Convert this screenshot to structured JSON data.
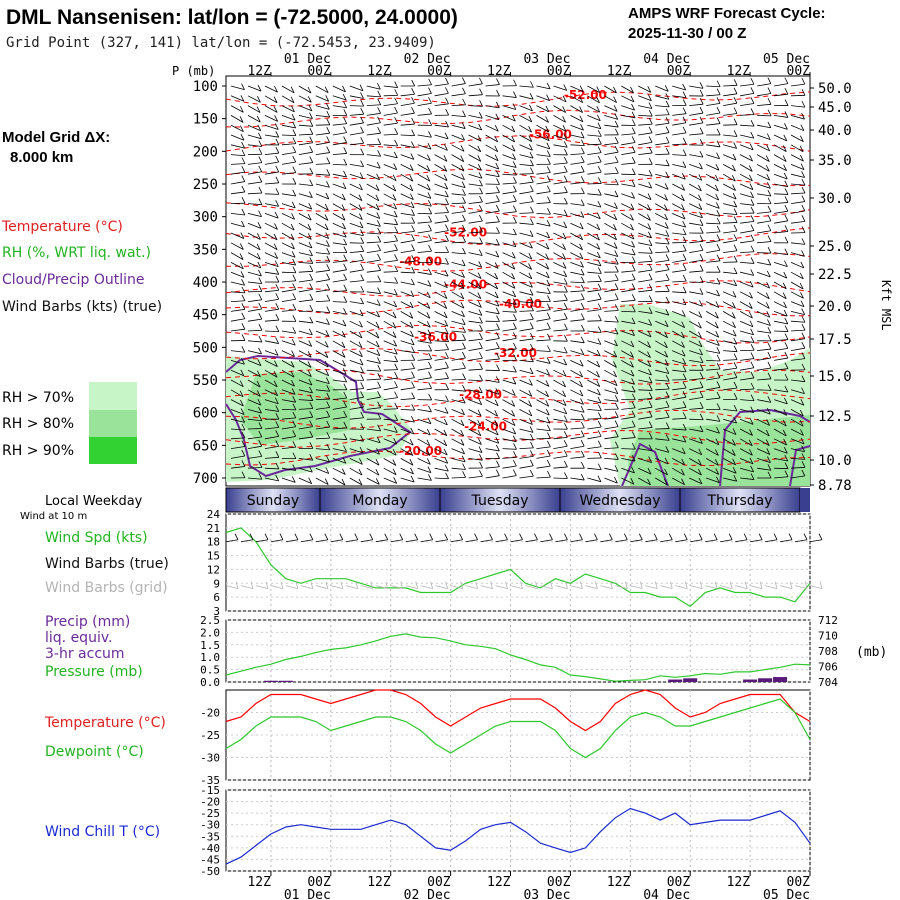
{
  "header": {
    "title": "DML Nansenisen:  lat/lon = (-72.5000, 24.0000)",
    "grid_point": "Grid Point (327, 141) lat/lon = (-72.5453, 23.9409)",
    "cycle_label": "AMPS WRF Forecast Cycle:",
    "cycle_value": "2025-11-30 / 00  Z",
    "model_grid_label": "Model Grid ΔX:",
    "model_grid_value": "8.000 km"
  },
  "legend": {
    "temperature": "Temperature (°C)",
    "rh": "RH (%, WRT liq. wat.)",
    "cloud": "Cloud/Precip Outline",
    "wind_barbs": "Wind Barbs (kts) (true)",
    "rh70": "RH > 70%",
    "rh80": "RH > 80%",
    "rh90": "RH > 90%",
    "local_weekday": "Local Weekday",
    "wind_at_10m": "Wind at 10 m",
    "wind_spd": "Wind Spd (kts)",
    "wind_barbs_true": "Wind Barbs (true)",
    "wind_barbs_grid": "Wind Barbs (grid)",
    "precip": "Precip (mm)",
    "liq_equiv": "liq. equiv.",
    "accum": "3-hr accum",
    "pressure": "Pressure (mb)",
    "temp2": "Temperature (°C)",
    "dewpoint": "Dewpoint (°C)",
    "wind_chill": "Wind Chill T (°C)",
    "mb_unit": "(mb)",
    "p_unit": "P (mb)",
    "kft_unit": "Kft MSL"
  },
  "colors": {
    "temp": "#ff0000",
    "rh70": "#c8f5c8",
    "rh80": "#9ae39a",
    "rh90": "#32d232",
    "cloud": "#6a2a9a",
    "green": "#2ec82e",
    "blue": "#1a2ad0",
    "grid_barb": "#b4b4b4",
    "purple_bar": "#5a1a7a"
  },
  "chart_data": [
    {
      "type": "contour",
      "title": "Time-height cross section",
      "ylabel": "P (mb)",
      "y2label": "Kft MSL",
      "ylim": [
        700,
        100
      ],
      "pressure_ticks": [
        100,
        150,
        200,
        250,
        300,
        350,
        400,
        450,
        500,
        550,
        600,
        650,
        700
      ],
      "height_ticks": [
        "50.0",
        "45.0",
        "40.0",
        "35.0",
        "30.0",
        "25.0",
        "22.5",
        "20.0",
        "17.5",
        "15.0",
        "12.5",
        "10.0",
        "8.78"
      ],
      "time_hours_range": [
        3,
        120
      ],
      "top_time_labels": [
        {
          "t": 12,
          "hour": "12Z",
          "date": ""
        },
        {
          "t": 24,
          "hour": "00Z",
          "date": "01 Dec"
        },
        {
          "t": 36,
          "hour": "12Z",
          "date": ""
        },
        {
          "t": 48,
          "hour": "00Z",
          "date": "02 Dec"
        },
        {
          "t": 60,
          "hour": "12Z",
          "date": ""
        },
        {
          "t": 72,
          "hour": "00Z",
          "date": "03 Dec"
        },
        {
          "t": 84,
          "hour": "12Z",
          "date": ""
        },
        {
          "t": 96,
          "hour": "00Z",
          "date": "04 Dec"
        },
        {
          "t": 108,
          "hour": "12Z",
          "date": ""
        },
        {
          "t": 120,
          "hour": "00Z",
          "date": "05 Dec"
        }
      ],
      "temperature_contour_labels": [
        {
          "t": 75,
          "p": 120,
          "label": "-52.00"
        },
        {
          "t": 68,
          "p": 180,
          "label": "-56.00"
        },
        {
          "t": 51,
          "p": 330,
          "label": "-52.00"
        },
        {
          "t": 42,
          "p": 375,
          "label": "-48.00"
        },
        {
          "t": 51,
          "p": 410,
          "label": "-44.00"
        },
        {
          "t": 62,
          "p": 440,
          "label": "-40.00"
        },
        {
          "t": 45,
          "p": 490,
          "label": "-36.00"
        },
        {
          "t": 61,
          "p": 515,
          "label": "-32.00"
        },
        {
          "t": 54,
          "p": 578,
          "label": "-28.00"
        },
        {
          "t": 55,
          "p": 627,
          "label": "-24.00"
        },
        {
          "t": 42,
          "p": 665,
          "label": "-20.00"
        }
      ],
      "rh_levels": [
        "> 70%",
        "> 80%",
        "> 90%"
      ]
    },
    {
      "type": "line",
      "title": "Wind Spd (kts)",
      "x": [
        3,
        6,
        9,
        12,
        15,
        18,
        21,
        24,
        27,
        30,
        33,
        36,
        39,
        42,
        45,
        48,
        51,
        54,
        57,
        60,
        63,
        66,
        69,
        72,
        75,
        78,
        81,
        84,
        87,
        90,
        93,
        96,
        99,
        102,
        105,
        108,
        111,
        114,
        117,
        120
      ],
      "values": [
        20,
        21,
        18,
        13,
        10,
        9,
        10,
        10,
        10,
        9,
        8,
        8,
        8,
        7,
        7,
        7,
        9,
        10,
        11,
        12,
        9,
        8,
        10,
        9,
        11,
        10,
        9,
        7,
        7,
        6,
        6,
        4,
        7,
        8,
        7,
        7,
        6,
        6,
        5,
        9
      ],
      "ylim": [
        3,
        24
      ],
      "yticks": [
        3,
        6,
        9,
        12,
        15,
        18,
        21,
        24
      ]
    },
    {
      "type": "bar+line",
      "title": "Precip (mm) / Pressure (mb)",
      "x": [
        3,
        6,
        9,
        12,
        15,
        18,
        21,
        24,
        27,
        30,
        33,
        36,
        39,
        42,
        45,
        48,
        51,
        54,
        57,
        60,
        63,
        66,
        69,
        72,
        75,
        78,
        81,
        84,
        87,
        90,
        93,
        96,
        99,
        102,
        105,
        108,
        111,
        114,
        117,
        120
      ],
      "precip": [
        0,
        0,
        0,
        0.05,
        0.05,
        0,
        0,
        0,
        0,
        0,
        0,
        0,
        0,
        0,
        0,
        0,
        0,
        0,
        0,
        0,
        0,
        0,
        0,
        0,
        0,
        0,
        0,
        0,
        0,
        0,
        0.1,
        0.15,
        0,
        0,
        0,
        0.1,
        0.15,
        0.2,
        0,
        0
      ],
      "pressure": [
        704.9,
        705.4,
        705.9,
        706.3,
        706.9,
        707.3,
        707.8,
        708.2,
        708.4,
        708.8,
        709.3,
        709.9,
        710.2,
        709.8,
        709.7,
        709.3,
        708.8,
        708.6,
        708.3,
        707.5,
        706.9,
        706.2,
        705.9,
        704.9,
        704.7,
        704.4,
        704.1,
        704.2,
        704.3,
        704.8,
        704.6,
        704.8,
        705.1,
        705.0,
        705.3,
        705.3,
        705.6,
        705.9,
        706.3,
        706.2
      ],
      "ylim_left": [
        0,
        2.5
      ],
      "yticks_left": [
        "2.5",
        "2.0",
        "1.5",
        "1.0",
        "0.5",
        "0.0"
      ],
      "ylim_right": [
        704,
        712
      ],
      "yticks_right": [
        712,
        710,
        708,
        706,
        704
      ]
    },
    {
      "type": "line",
      "title": "Temperature / Dewpoint (°C)",
      "x": [
        3,
        6,
        9,
        12,
        15,
        18,
        21,
        24,
        27,
        30,
        33,
        36,
        39,
        42,
        45,
        48,
        51,
        54,
        57,
        60,
        63,
        66,
        69,
        72,
        75,
        78,
        81,
        84,
        87,
        90,
        93,
        96,
        99,
        102,
        105,
        108,
        111,
        114,
        117,
        120
      ],
      "series": [
        {
          "name": "Temperature",
          "values": [
            -22,
            -21,
            -18,
            -16,
            -16,
            -16,
            -17,
            -18,
            -17,
            -16,
            -15,
            -15,
            -16,
            -18,
            -21,
            -23,
            -21,
            -19,
            -18,
            -17,
            -17,
            -17,
            -19,
            -22,
            -24,
            -22,
            -18,
            -16,
            -15,
            -16,
            -19,
            -21,
            -20,
            -18,
            -17,
            -16,
            -16,
            -16,
            -20,
            -22
          ]
        },
        {
          "name": "Dewpoint",
          "values": [
            -28,
            -26,
            -23,
            -21,
            -21,
            -21,
            -22,
            -24,
            -23,
            -22,
            -21,
            -21,
            -22,
            -24,
            -27,
            -29,
            -27,
            -25,
            -23,
            -22,
            -22,
            -22,
            -24,
            -28,
            -30,
            -28,
            -24,
            -21,
            -20,
            -21,
            -23,
            -23,
            -22,
            -21,
            -20,
            -19,
            -18,
            -17,
            -20,
            -26
          ]
        }
      ],
      "ylim": [
        -35,
        -15
      ],
      "yticks": [
        -20,
        -25,
        -30,
        -35
      ]
    },
    {
      "type": "line",
      "title": "Wind Chill T (°C)",
      "x": [
        3,
        6,
        9,
        12,
        15,
        18,
        21,
        24,
        27,
        30,
        33,
        36,
        39,
        42,
        45,
        48,
        51,
        54,
        57,
        60,
        63,
        66,
        69,
        72,
        75,
        78,
        81,
        84,
        87,
        90,
        93,
        96,
        99,
        102,
        105,
        108,
        111,
        114,
        117,
        120
      ],
      "values": [
        -47,
        -44,
        -39,
        -34,
        -31,
        -30,
        -31,
        -32,
        -32,
        -32,
        -30,
        -28,
        -30,
        -35,
        -40,
        -41,
        -37,
        -32,
        -30,
        -29,
        -33,
        -38,
        -40,
        -42,
        -40,
        -33,
        -27,
        -23,
        -25,
        -28,
        -25,
        -30,
        -29,
        -28,
        -28,
        -28,
        -26,
        -24,
        -29,
        -38
      ],
      "ylim": [
        -50,
        -15
      ],
      "yticks": [
        -15,
        -20,
        -25,
        -30,
        -35,
        -40,
        -45,
        -50
      ]
    }
  ],
  "weekdays": [
    "Sunday",
    "Monday",
    "Tuesday",
    "Wednesday",
    "Thursday"
  ],
  "bottom_time_labels": [
    {
      "hour": "12Z",
      "date": ""
    },
    {
      "hour": "00Z",
      "date": "01 Dec"
    },
    {
      "hour": "12Z",
      "date": ""
    },
    {
      "hour": "00Z",
      "date": "02 Dec"
    },
    {
      "hour": "12Z",
      "date": ""
    },
    {
      "hour": "00Z",
      "date": "03 Dec"
    },
    {
      "hour": "12Z",
      "date": ""
    },
    {
      "hour": "00Z",
      "date": "04 Dec"
    },
    {
      "hour": "12Z",
      "date": ""
    },
    {
      "hour": "00Z",
      "date": "05 Dec"
    }
  ]
}
